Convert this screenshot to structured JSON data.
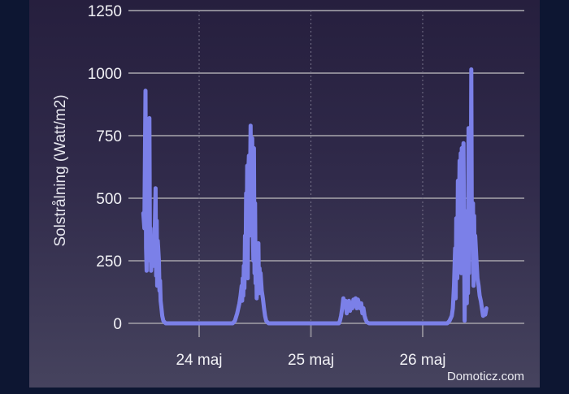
{
  "chart_data": {
    "type": "line",
    "title": "",
    "xlabel": "",
    "ylabel": "Solstrålning (Watt/m2)",
    "ylim": [
      0,
      1250
    ],
    "yticks": [
      0,
      250,
      500,
      750,
      1000,
      1250
    ],
    "xticks": [
      "24 maj",
      "25 maj",
      "26 maj"
    ],
    "grid": {
      "horizontal": true,
      "vertical_dotted_at_day_boundaries": true
    },
    "legend": null,
    "credit": "Domoticz.com",
    "series": [
      {
        "name": "Solstrålning",
        "color": "#7b80e8",
        "x_unit": "days since 23 maj 00:00",
        "points": [
          [
            0.5,
            440
          ],
          [
            0.51,
            380
          ],
          [
            0.52,
            930
          ],
          [
            0.525,
            300
          ],
          [
            0.53,
            210
          ],
          [
            0.535,
            790
          ],
          [
            0.54,
            250
          ],
          [
            0.55,
            580
          ],
          [
            0.555,
            820
          ],
          [
            0.56,
            260
          ],
          [
            0.565,
            380
          ],
          [
            0.57,
            210
          ],
          [
            0.58,
            320
          ],
          [
            0.585,
            340
          ],
          [
            0.59,
            230
          ],
          [
            0.6,
            300
          ],
          [
            0.61,
            540
          ],
          [
            0.615,
            190
          ],
          [
            0.62,
            410
          ],
          [
            0.625,
            150
          ],
          [
            0.63,
            330
          ],
          [
            0.64,
            250
          ],
          [
            0.645,
            130
          ],
          [
            0.65,
            170
          ],
          [
            0.655,
            90
          ],
          [
            0.66,
            70
          ],
          [
            0.67,
            30
          ],
          [
            0.68,
            10
          ],
          [
            0.7,
            0
          ],
          [
            1.0,
            0
          ],
          [
            1.3,
            0
          ],
          [
            1.32,
            10
          ],
          [
            1.34,
            40
          ],
          [
            1.36,
            80
          ],
          [
            1.37,
            110
          ],
          [
            1.38,
            150
          ],
          [
            1.385,
            90
          ],
          [
            1.39,
            180
          ],
          [
            1.395,
            110
          ],
          [
            1.4,
            230
          ],
          [
            1.405,
            140
          ],
          [
            1.41,
            350
          ],
          [
            1.415,
            200
          ],
          [
            1.42,
            520
          ],
          [
            1.425,
            300
          ],
          [
            1.43,
            630
          ],
          [
            1.435,
            180
          ],
          [
            1.44,
            600
          ],
          [
            1.445,
            670
          ],
          [
            1.45,
            350
          ],
          [
            1.455,
            560
          ],
          [
            1.46,
            790
          ],
          [
            1.465,
            420
          ],
          [
            1.47,
            580
          ],
          [
            1.475,
            740
          ],
          [
            1.48,
            380
          ],
          [
            1.485,
            250
          ],
          [
            1.49,
            700
          ],
          [
            1.495,
            200
          ],
          [
            1.5,
            480
          ],
          [
            1.505,
            160
          ],
          [
            1.51,
            300
          ],
          [
            1.515,
            100
          ],
          [
            1.52,
            290
          ],
          [
            1.525,
            190
          ],
          [
            1.53,
            320
          ],
          [
            1.535,
            120
          ],
          [
            1.54,
            220
          ],
          [
            1.545,
            170
          ],
          [
            1.55,
            200
          ],
          [
            1.56,
            130
          ],
          [
            1.57,
            100
          ],
          [
            1.58,
            60
          ],
          [
            1.59,
            30
          ],
          [
            1.6,
            10
          ],
          [
            1.62,
            0
          ],
          [
            2.0,
            0
          ],
          [
            2.25,
            0
          ],
          [
            2.26,
            10
          ],
          [
            2.27,
            30
          ],
          [
            2.28,
            60
          ],
          [
            2.29,
            100
          ],
          [
            2.3,
            70
          ],
          [
            2.31,
            90
          ],
          [
            2.32,
            40
          ],
          [
            2.33,
            70
          ],
          [
            2.34,
            90
          ],
          [
            2.35,
            50
          ],
          [
            2.36,
            80
          ],
          [
            2.37,
            60
          ],
          [
            2.38,
            95
          ],
          [
            2.39,
            70
          ],
          [
            2.4,
            100
          ],
          [
            2.41,
            60
          ],
          [
            2.42,
            95
          ],
          [
            2.43,
            80
          ],
          [
            2.44,
            60
          ],
          [
            2.45,
            80
          ],
          [
            2.46,
            40
          ],
          [
            2.47,
            60
          ],
          [
            2.48,
            30
          ],
          [
            2.49,
            15
          ],
          [
            2.5,
            5
          ],
          [
            2.52,
            0
          ],
          [
            3.0,
            0
          ],
          [
            3.22,
            0
          ],
          [
            3.24,
            10
          ],
          [
            3.26,
            30
          ],
          [
            3.27,
            60
          ],
          [
            3.28,
            150
          ],
          [
            3.29,
            300
          ],
          [
            3.295,
            100
          ],
          [
            3.3,
            420
          ],
          [
            3.31,
            180
          ],
          [
            3.315,
            570
          ],
          [
            3.32,
            250
          ],
          [
            3.33,
            650
          ],
          [
            3.335,
            280
          ],
          [
            3.34,
            680
          ],
          [
            3.345,
            200
          ],
          [
            3.35,
            700
          ],
          [
            3.36,
            660
          ],
          [
            3.365,
            720
          ],
          [
            3.37,
            360
          ],
          [
            3.375,
            10
          ],
          [
            3.38,
            330
          ],
          [
            3.39,
            260
          ],
          [
            3.395,
            80
          ],
          [
            3.4,
            450
          ],
          [
            3.405,
            120
          ],
          [
            3.41,
            780
          ],
          [
            3.415,
            200
          ],
          [
            3.42,
            580
          ],
          [
            3.43,
            380
          ],
          [
            3.435,
            1015
          ],
          [
            3.44,
            300
          ],
          [
            3.45,
            480
          ],
          [
            3.455,
            150
          ],
          [
            3.46,
            430
          ],
          [
            3.465,
            200
          ],
          [
            3.47,
            350
          ],
          [
            3.48,
            260
          ],
          [
            3.49,
            180
          ],
          [
            3.5,
            150
          ],
          [
            3.51,
            110
          ],
          [
            3.52,
            90
          ],
          [
            3.53,
            60
          ],
          [
            3.54,
            30
          ],
          [
            3.55,
            50
          ],
          [
            3.56,
            35
          ],
          [
            3.57,
            60
          ]
        ]
      }
    ]
  }
}
